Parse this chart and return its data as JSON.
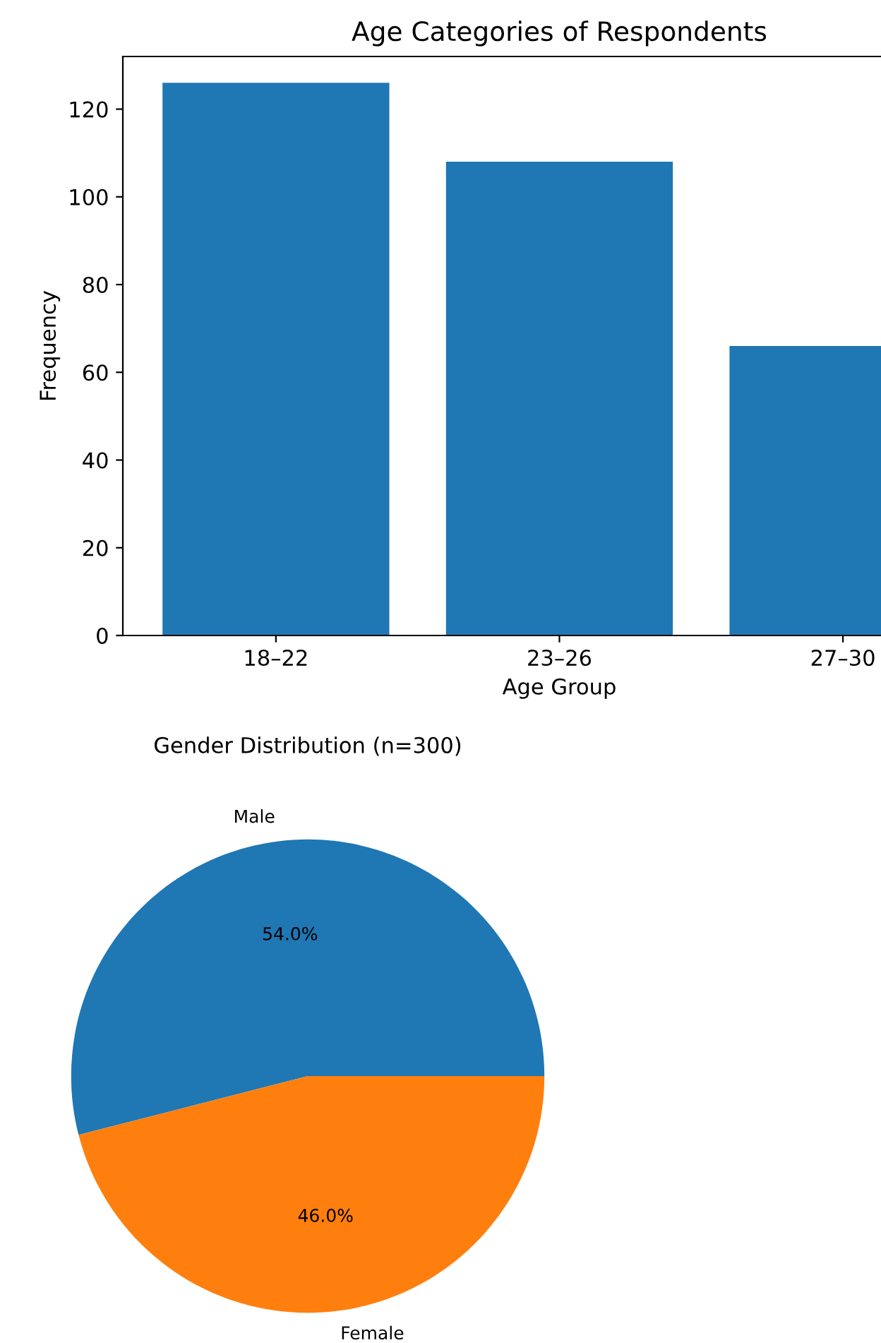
{
  "chart_data": [
    {
      "type": "bar",
      "title": "Age Categories of Respondents",
      "xlabel": "Age Group",
      "ylabel": "Frequency",
      "categories": [
        "18–22",
        "23–26",
        "27–30"
      ],
      "values": [
        126,
        108,
        66
      ],
      "color": "#1f77b4",
      "ylim": [
        0,
        132
      ],
      "yticks": [
        0,
        20,
        40,
        60,
        80,
        100,
        120
      ],
      "grid": false,
      "legend": false
    },
    {
      "type": "pie",
      "title": "Gender Distribution (n=300)",
      "categories": [
        "Male",
        "Female"
      ],
      "values": [
        54,
        46
      ],
      "colors": [
        "#1f77b4",
        "#ff7f0e"
      ],
      "value_labels": [
        "54.0%",
        "46.0%"
      ],
      "legend": false
    }
  ]
}
